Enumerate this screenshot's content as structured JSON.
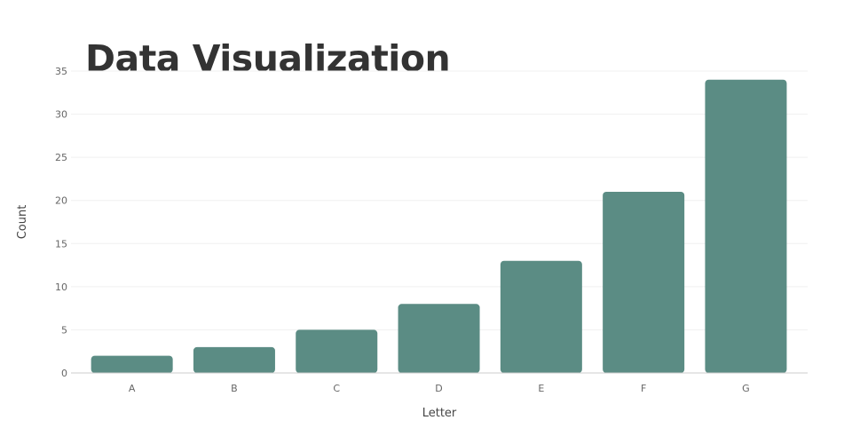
{
  "chart_data": {
    "type": "bar",
    "title": "Data Visualization",
    "xlabel": "Letter",
    "ylabel": "Count",
    "categories": [
      "A",
      "B",
      "C",
      "D",
      "E",
      "F",
      "G"
    ],
    "values": [
      2,
      3,
      5,
      8,
      13,
      21,
      34
    ],
    "ylim": [
      0,
      35
    ],
    "yticks": [
      0,
      5,
      10,
      15,
      20,
      25,
      30,
      35
    ],
    "grid": true,
    "bar_color": "#5b8c84"
  }
}
